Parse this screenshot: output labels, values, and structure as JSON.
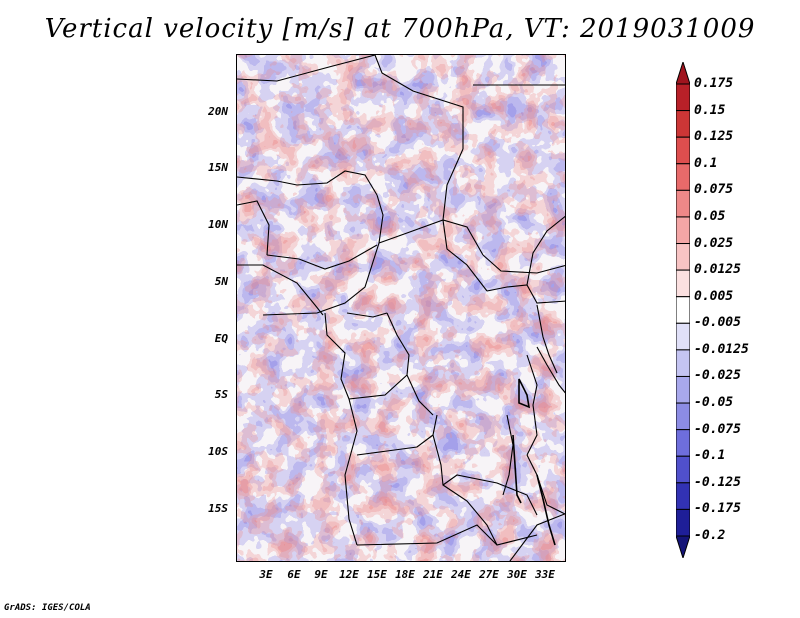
{
  "title": "Vertical velocity [m/s] at 700hPa, VT: 2019031009",
  "credit": "GrADS: IGES/COLA",
  "y_axis_labels": [
    "20N",
    "15N",
    "10N",
    "5N",
    "EQ",
    "5S",
    "10S",
    "15S"
  ],
  "x_axis_labels": [
    "3E",
    "6E",
    "9E",
    "12E",
    "15E",
    "18E",
    "21E",
    "24E",
    "27E",
    "30E",
    "33E"
  ],
  "colorbar": {
    "levels": [
      "0.175",
      "0.15",
      "0.125",
      "0.1",
      "0.075",
      "0.05",
      "0.025",
      "0.0125",
      "0.005",
      "-0.005",
      "-0.0125",
      "-0.025",
      "-0.05",
      "-0.075",
      "-0.1",
      "-0.125",
      "-0.175",
      "-0.2"
    ],
    "colors": [
      "#a0141e",
      "#b82028",
      "#cc3636",
      "#de4e4e",
      "#e86a6a",
      "#ee8888",
      "#f4a6a6",
      "#f8c4c4",
      "#fbe0e0",
      "#ffffff",
      "#e0e0f8",
      "#c4c4f2",
      "#a8a8ec",
      "#8c8ce4",
      "#6e6edc",
      "#5050cc",
      "#3232b4",
      "#1e1e98",
      "#141478"
    ]
  },
  "map": {
    "lon_range": [
      0,
      35
    ],
    "lat_range": [
      -20,
      24
    ],
    "y_tick_values": [
      20,
      15,
      10,
      5,
      0,
      -5,
      -10,
      -15
    ],
    "x_tick_values": [
      3,
      6,
      9,
      12,
      15,
      18,
      21,
      24,
      27,
      30,
      33
    ]
  }
}
